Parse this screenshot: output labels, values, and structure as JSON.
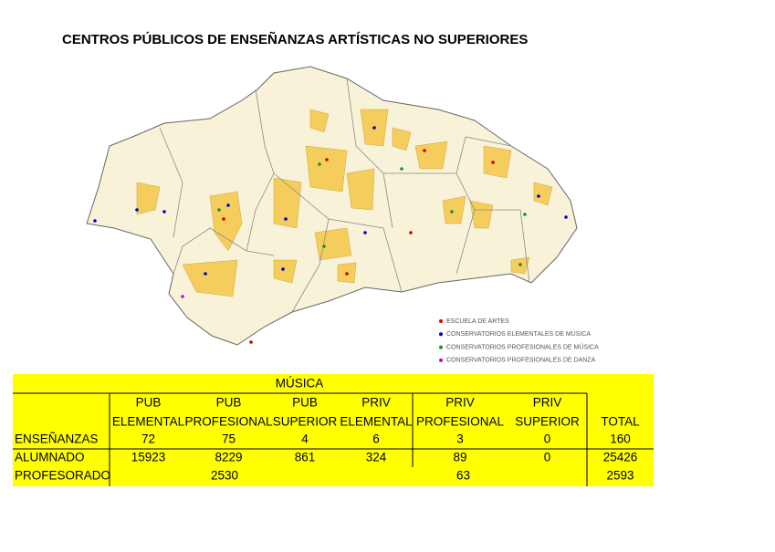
{
  "title": "CENTROS PÚBLICOS DE ENSEÑANZAS ARTÍSTICAS NO SUPERIORES",
  "legend": [
    "ESCUELA DE ARTES",
    "CONSERVATORIOS ELEMENTALES DE MÚSICA",
    "CONSERVATORIOS PROFESIONALES DE MÚSICA",
    "CONSERVATORIOS PROFESIONALES DE DANZA"
  ],
  "table": {
    "header": "MÚSICA",
    "columns": [
      [
        "PUB",
        "ELEMENTAL"
      ],
      [
        "PUB",
        "PROFESIONAL"
      ],
      [
        "PUB",
        "SUPERIOR"
      ],
      [
        "PRIV",
        "ELEMENTAL"
      ],
      [
        "PRIV",
        "PROFESIONAL"
      ],
      [
        "PRIV",
        "SUPERIOR"
      ],
      [
        "",
        "TOTAL"
      ]
    ],
    "rows": [
      {
        "label": "ENSEÑANZAS",
        "cells": [
          72,
          75,
          4,
          6,
          3,
          0,
          160
        ]
      },
      {
        "label": "ALUMNADO",
        "cells": [
          15923,
          8229,
          861,
          324,
          89,
          0,
          25426
        ]
      },
      {
        "label": "PROFESORADO",
        "cells": [
          2530,
          63,
          2593
        ]
      }
    ]
  }
}
